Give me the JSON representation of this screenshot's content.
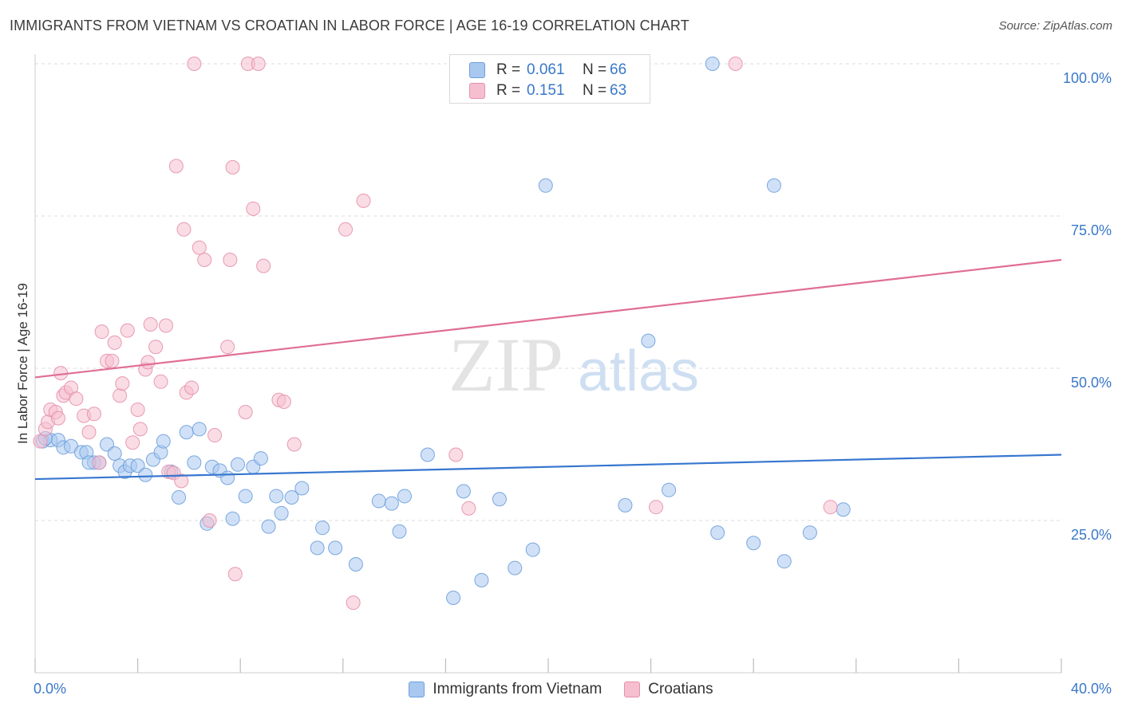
{
  "header": {
    "title": "IMMIGRANTS FROM VIETNAM VS CROATIAN IN LABOR FORCE | AGE 16-19 CORRELATION CHART",
    "source": "Source: ZipAtlas.com"
  },
  "watermark": {
    "part1": "ZIP",
    "part2": "atlas"
  },
  "legend_top": [
    {
      "r_label": "R =",
      "r_value": "0.061",
      "n_label": "N =",
      "n_value": "66"
    },
    {
      "r_label": "R =",
      "r_value": "0.151",
      "n_label": "N =",
      "n_value": "63"
    }
  ],
  "colors": {
    "vietnam_fill": "#a9c8f0",
    "vietnam_stroke": "#6d9fdc",
    "vietnam_line": "#3776cf",
    "croatian_fill": "#f6bfd0",
    "croatian_stroke": "#e590ac",
    "croatian_line": "#e06d96",
    "tick_label": "#3a78c9"
  },
  "chart_data": {
    "type": "scatter",
    "title": "IMMIGRANTS FROM VIETNAM VS CROATIAN IN LABOR FORCE | AGE 16-19 CORRELATION CHART",
    "xlabel": "",
    "ylabel": "In Labor Force | Age 16-19",
    "xlim": [
      0,
      40
    ],
    "ylim": [
      0,
      105
    ],
    "x_tick_labels": [
      "0.0%",
      "40.0%"
    ],
    "y_ticks": [
      25,
      50,
      75,
      100
    ],
    "y_tick_labels": [
      "25.0%",
      "50.0%",
      "75.0%",
      "100.0%"
    ],
    "grid": true,
    "legend_position": "bottom-center",
    "series": [
      {
        "name": "Immigrants from Vietnam",
        "r": 0.061,
        "n": 66,
        "trend": {
          "x": [
            0,
            40
          ],
          "y": [
            31.8,
            35.8
          ]
        },
        "points": [
          [
            0.3,
            38.0
          ],
          [
            0.6,
            38.2
          ],
          [
            0.9,
            38.2
          ],
          [
            1.1,
            37.0
          ],
          [
            1.4,
            37.2
          ],
          [
            1.8,
            36.2
          ],
          [
            2.0,
            36.2
          ],
          [
            2.3,
            34.5
          ],
          [
            2.5,
            34.5
          ],
          [
            2.8,
            37.5
          ],
          [
            3.1,
            36.0
          ],
          [
            3.3,
            34.0
          ],
          [
            3.5,
            33.0
          ],
          [
            3.7,
            34.0
          ],
          [
            4.0,
            34.0
          ],
          [
            4.3,
            32.5
          ],
          [
            4.6,
            35.0
          ],
          [
            4.9,
            36.2
          ],
          [
            5.0,
            38.0
          ],
          [
            5.3,
            33.0
          ],
          [
            5.6,
            28.8
          ],
          [
            5.9,
            39.5
          ],
          [
            6.2,
            34.5
          ],
          [
            6.4,
            40.0
          ],
          [
            6.7,
            24.5
          ],
          [
            6.9,
            33.8
          ],
          [
            7.2,
            33.2
          ],
          [
            7.5,
            32.0
          ],
          [
            7.7,
            25.3
          ],
          [
            7.9,
            34.2
          ],
          [
            8.2,
            29.0
          ],
          [
            8.5,
            33.8
          ],
          [
            8.8,
            35.2
          ],
          [
            9.1,
            24.0
          ],
          [
            9.4,
            29.0
          ],
          [
            9.6,
            26.2
          ],
          [
            10.0,
            28.8
          ],
          [
            10.4,
            30.3
          ],
          [
            11.0,
            20.5
          ],
          [
            11.2,
            23.8
          ],
          [
            11.7,
            20.5
          ],
          [
            12.5,
            17.8
          ],
          [
            13.4,
            28.2
          ],
          [
            13.9,
            27.8
          ],
          [
            14.2,
            23.2
          ],
          [
            14.4,
            29.0
          ],
          [
            15.3,
            35.8
          ],
          [
            16.3,
            12.3
          ],
          [
            16.7,
            29.8
          ],
          [
            17.4,
            15.2
          ],
          [
            18.1,
            28.5
          ],
          [
            18.7,
            17.2
          ],
          [
            19.4,
            20.2
          ],
          [
            19.9,
            80.0
          ],
          [
            23.0,
            27.5
          ],
          [
            23.9,
            54.5
          ],
          [
            24.7,
            30.0
          ],
          [
            26.4,
            100.0
          ],
          [
            26.6,
            23.0
          ],
          [
            28.0,
            21.3
          ],
          [
            28.8,
            80.0
          ],
          [
            29.2,
            18.3
          ],
          [
            30.2,
            23.0
          ],
          [
            31.5,
            26.8
          ],
          [
            0.4,
            38.5
          ],
          [
            2.1,
            34.5
          ]
        ]
      },
      {
        "name": "Croatians",
        "r": 0.151,
        "n": 63,
        "trend": {
          "x": [
            0,
            40
          ],
          "y": [
            48.5,
            67.8
          ]
        },
        "points": [
          [
            0.2,
            38.0
          ],
          [
            0.4,
            40.0
          ],
          [
            0.5,
            41.2
          ],
          [
            0.6,
            43.2
          ],
          [
            0.8,
            42.8
          ],
          [
            0.9,
            41.8
          ],
          [
            1.0,
            49.2
          ],
          [
            1.1,
            45.5
          ],
          [
            1.2,
            46.0
          ],
          [
            1.4,
            46.8
          ],
          [
            1.6,
            45.0
          ],
          [
            1.9,
            42.2
          ],
          [
            2.1,
            39.5
          ],
          [
            2.3,
            42.5
          ],
          [
            2.5,
            34.5
          ],
          [
            2.6,
            56.0
          ],
          [
            2.8,
            51.2
          ],
          [
            3.0,
            51.2
          ],
          [
            3.1,
            54.2
          ],
          [
            3.3,
            45.5
          ],
          [
            3.4,
            47.5
          ],
          [
            3.6,
            56.2
          ],
          [
            3.8,
            37.8
          ],
          [
            4.0,
            43.2
          ],
          [
            4.1,
            40.0
          ],
          [
            4.3,
            49.8
          ],
          [
            4.4,
            51.0
          ],
          [
            4.5,
            57.2
          ],
          [
            4.7,
            53.5
          ],
          [
            4.9,
            47.8
          ],
          [
            5.1,
            57.0
          ],
          [
            5.2,
            33.0
          ],
          [
            5.4,
            32.8
          ],
          [
            5.5,
            83.2
          ],
          [
            5.7,
            31.5
          ],
          [
            5.8,
            72.8
          ],
          [
            5.9,
            46.0
          ],
          [
            6.1,
            46.8
          ],
          [
            6.2,
            100.0
          ],
          [
            6.4,
            69.8
          ],
          [
            6.6,
            67.8
          ],
          [
            6.8,
            25.0
          ],
          [
            7.0,
            39.0
          ],
          [
            7.5,
            53.5
          ],
          [
            7.6,
            67.8
          ],
          [
            7.7,
            83.0
          ],
          [
            7.8,
            16.2
          ],
          [
            8.2,
            42.8
          ],
          [
            8.3,
            100.0
          ],
          [
            8.5,
            76.2
          ],
          [
            8.7,
            100.0
          ],
          [
            8.9,
            66.8
          ],
          [
            9.5,
            44.8
          ],
          [
            9.7,
            44.5
          ],
          [
            10.1,
            37.5
          ],
          [
            12.1,
            72.8
          ],
          [
            12.4,
            11.5
          ],
          [
            12.8,
            77.5
          ],
          [
            16.4,
            35.8
          ],
          [
            16.9,
            27.0
          ],
          [
            24.2,
            27.2
          ],
          [
            27.3,
            100.0
          ],
          [
            31.0,
            27.2
          ]
        ]
      }
    ]
  }
}
